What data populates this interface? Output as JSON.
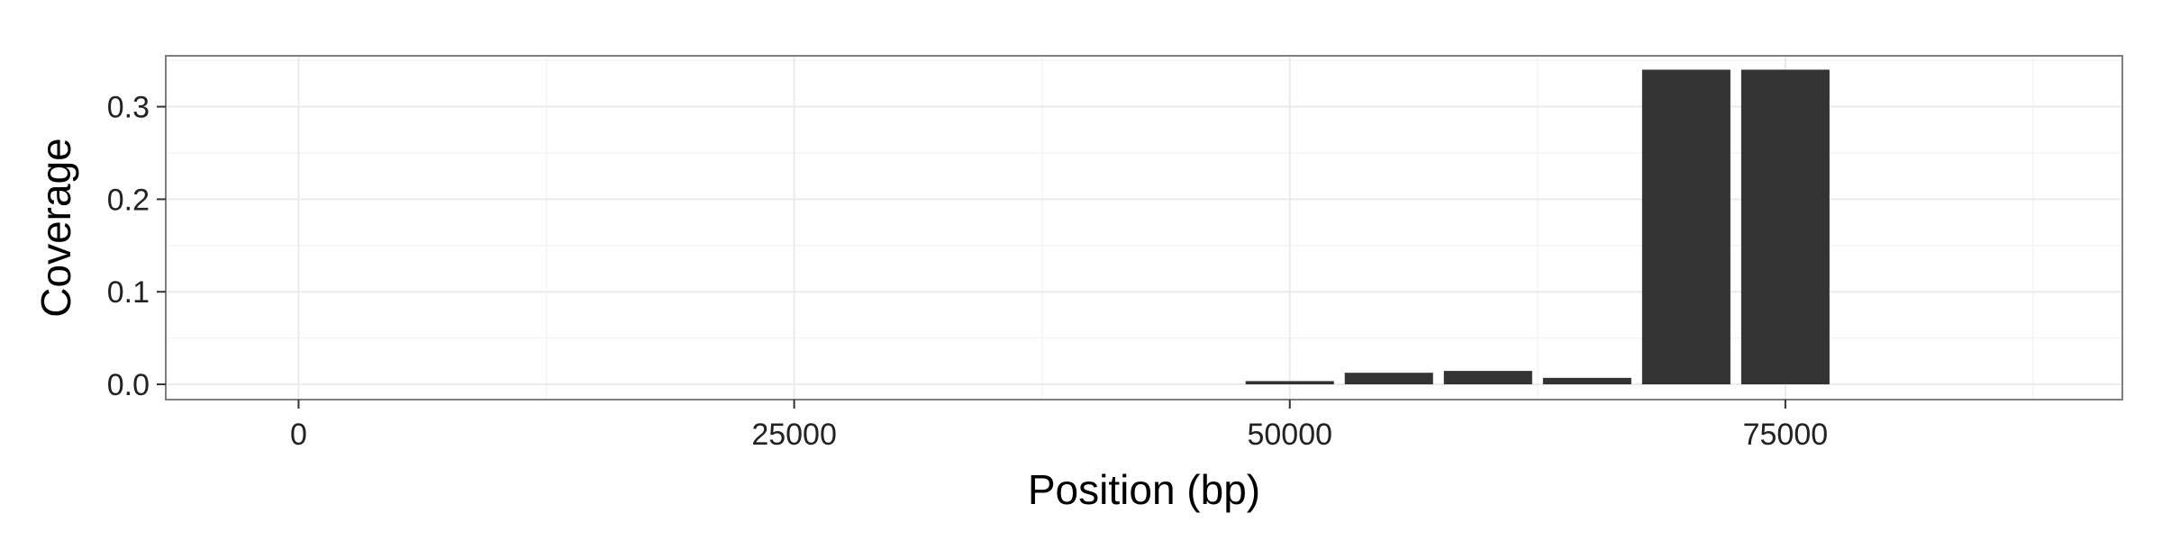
{
  "chart_data": {
    "type": "bar",
    "title": "",
    "xlabel": "Position (bp)",
    "ylabel": "Coverage",
    "xlim": [
      -6700,
      92000
    ],
    "ylim": [
      -0.0165,
      0.355
    ],
    "x_ticks": [
      {
        "value": 0,
        "label": "0"
      },
      {
        "value": 25000,
        "label": "25000"
      },
      {
        "value": 50000,
        "label": "50000"
      },
      {
        "value": 75000,
        "label": "75000"
      }
    ],
    "y_ticks": [
      {
        "value": 0.0,
        "label": "0.0"
      },
      {
        "value": 0.1,
        "label": "0.1"
      },
      {
        "value": 0.2,
        "label": "0.2"
      },
      {
        "value": 0.3,
        "label": "0.3"
      }
    ],
    "bin_width": 5000,
    "bars": [
      {
        "x": 50000,
        "value": 0.0035
      },
      {
        "x": 55000,
        "value": 0.0125
      },
      {
        "x": 60000,
        "value": 0.0145
      },
      {
        "x": 65000,
        "value": 0.007
      },
      {
        "x": 70000,
        "value": 0.34
      },
      {
        "x": 75000,
        "value": 0.34
      }
    ],
    "grid": true,
    "bar_color": "#333333",
    "grid_color": "#ebebeb",
    "panel_border_color": "#7f7f7f"
  }
}
